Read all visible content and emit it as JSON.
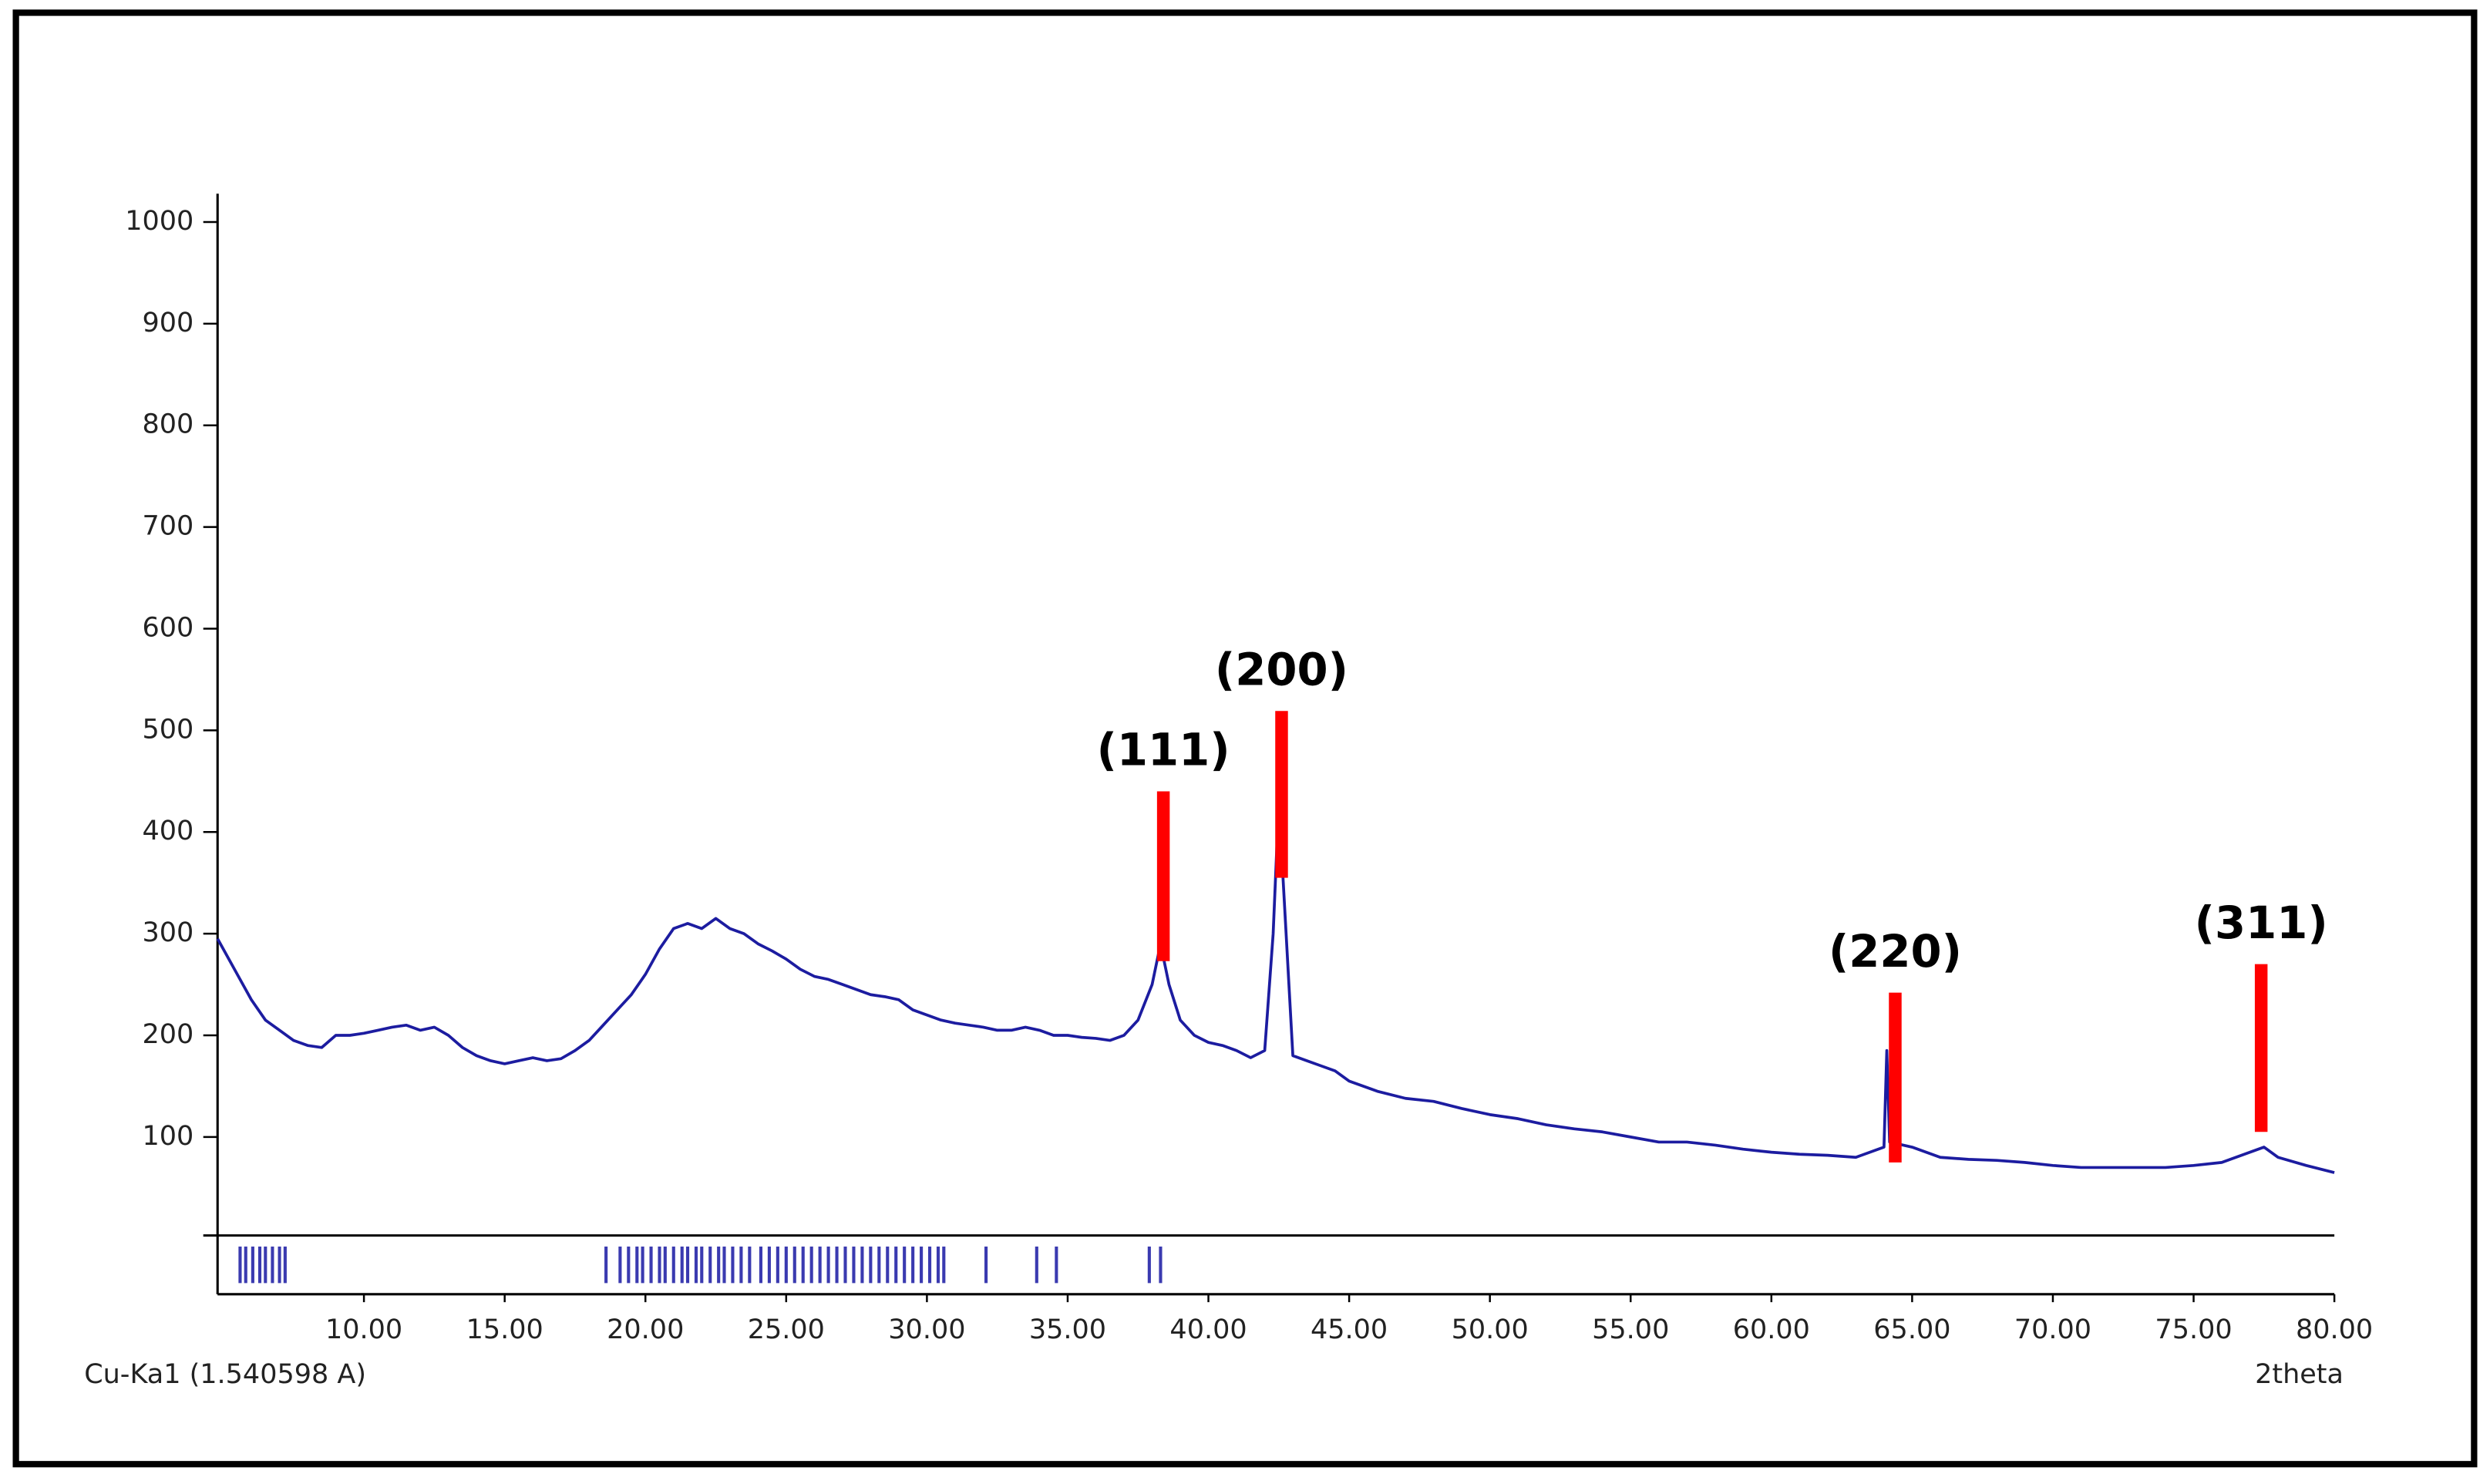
{
  "chart_data": {
    "type": "line",
    "x_label": "2theta",
    "source_label": "Cu-Ka1 (1.540598 A)",
    "xlim": [
      4.8,
      80
    ],
    "ylim": [
      0,
      1020
    ],
    "yticks": [
      100,
      200,
      300,
      400,
      500,
      600,
      700,
      800,
      900,
      1000
    ],
    "xticks": [
      {
        "value": 10,
        "label": "10.00"
      },
      {
        "value": 15,
        "label": "15.00"
      },
      {
        "value": 20,
        "label": "20.00"
      },
      {
        "value": 25,
        "label": "25.00"
      },
      {
        "value": 30,
        "label": "30.00"
      },
      {
        "value": 35,
        "label": "35.00"
      },
      {
        "value": 40,
        "label": "40.00"
      },
      {
        "value": 45,
        "label": "45.00"
      },
      {
        "value": 50,
        "label": "50.00"
      },
      {
        "value": 55,
        "label": "55.00"
      },
      {
        "value": 60,
        "label": "60.00"
      },
      {
        "value": 65,
        "label": "65.00"
      },
      {
        "value": 70,
        "label": "70.00"
      },
      {
        "value": 75,
        "label": "75.00"
      },
      {
        "value": 80,
        "label": "80.00"
      }
    ],
    "x": [
      4.8,
      5.5,
      6,
      6.5,
      7,
      7.5,
      8,
      8.5,
      9,
      9.5,
      10,
      10.5,
      11,
      11.5,
      12,
      12.5,
      13,
      13.5,
      14,
      14.5,
      15,
      15.5,
      16,
      16.5,
      17,
      17.5,
      18,
      18.5,
      19,
      19.5,
      20,
      20.5,
      21,
      21.5,
      22,
      22.5,
      23,
      23.5,
      24,
      24.5,
      25,
      25.5,
      26,
      26.5,
      27,
      27.5,
      28,
      28.5,
      29,
      29.5,
      30,
      30.5,
      31,
      31.5,
      32,
      32.5,
      33,
      33.5,
      34,
      34.5,
      35,
      35.5,
      36,
      36.5,
      37,
      37.5,
      38,
      38.3,
      38.6,
      39,
      39.5,
      40,
      40.5,
      41,
      41.5,
      42,
      42.3,
      42.5,
      42.7,
      43,
      43.5,
      44,
      44.5,
      45,
      46,
      47,
      48,
      49,
      50,
      51,
      52,
      53,
      54,
      55,
      56,
      57,
      58,
      59,
      60,
      61,
      62,
      63,
      64,
      64.1,
      64.2,
      65,
      66,
      67,
      68,
      69,
      70,
      71,
      72,
      73,
      74,
      75,
      76,
      77,
      77.5,
      78,
      79,
      80
    ],
    "color": "#1c1ca0",
    "values": [
      295,
      260,
      235,
      215,
      205,
      195,
      190,
      188,
      200,
      200,
      202,
      205,
      208,
      210,
      205,
      208,
      200,
      188,
      180,
      175,
      172,
      175,
      178,
      175,
      177,
      185,
      195,
      210,
      225,
      240,
      260,
      285,
      305,
      310,
      305,
      315,
      305,
      300,
      290,
      283,
      275,
      265,
      258,
      255,
      250,
      245,
      240,
      238,
      235,
      225,
      220,
      215,
      212,
      210,
      208,
      205,
      205,
      208,
      205,
      200,
      200,
      198,
      197,
      195,
      200,
      215,
      250,
      290,
      250,
      215,
      200,
      193,
      190,
      185,
      178,
      185,
      300,
      430,
      330,
      180,
      175,
      170,
      165,
      155,
      145,
      138,
      135,
      128,
      122,
      118,
      112,
      108,
      105,
      100,
      95,
      95,
      92,
      88,
      85,
      83,
      82,
      80,
      90,
      185,
      95,
      90,
      80,
      78,
      77,
      75,
      72,
      70,
      70,
      70,
      70,
      72,
      75,
      85,
      90,
      80,
      72,
      65
    ],
    "annotation_color": "#ff0000",
    "annotations": [
      {
        "label": "(111)",
        "x": 38.4,
        "y": [
          273,
          440
        ]
      },
      {
        "label": "(200)",
        "x": 42.6,
        "y": [
          355,
          519
        ]
      },
      {
        "label": "(220)",
        "x": 64.4,
        "y": [
          75,
          242
        ]
      },
      {
        "label": "(311)",
        "x": 77.4,
        "y": [
          105,
          270
        ]
      }
    ],
    "reference_color": "#3a3ab0",
    "reference_positions": [
      5.6,
      5.8,
      6.05,
      6.3,
      6.5,
      6.75,
      7.0,
      7.2,
      18.6,
      19.1,
      19.4,
      19.7,
      19.9,
      20.2,
      20.5,
      20.7,
      21.0,
      21.3,
      21.5,
      21.8,
      22.0,
      22.3,
      22.6,
      22.8,
      23.1,
      23.4,
      23.7,
      24.1,
      24.4,
      24.7,
      25.0,
      25.3,
      25.6,
      25.9,
      26.2,
      26.5,
      26.8,
      27.1,
      27.4,
      27.7,
      28.0,
      28.3,
      28.6,
      28.9,
      29.2,
      29.5,
      29.8,
      30.1,
      30.4,
      30.6,
      32.1,
      33.9,
      34.6,
      37.9,
      38.3
    ]
  }
}
